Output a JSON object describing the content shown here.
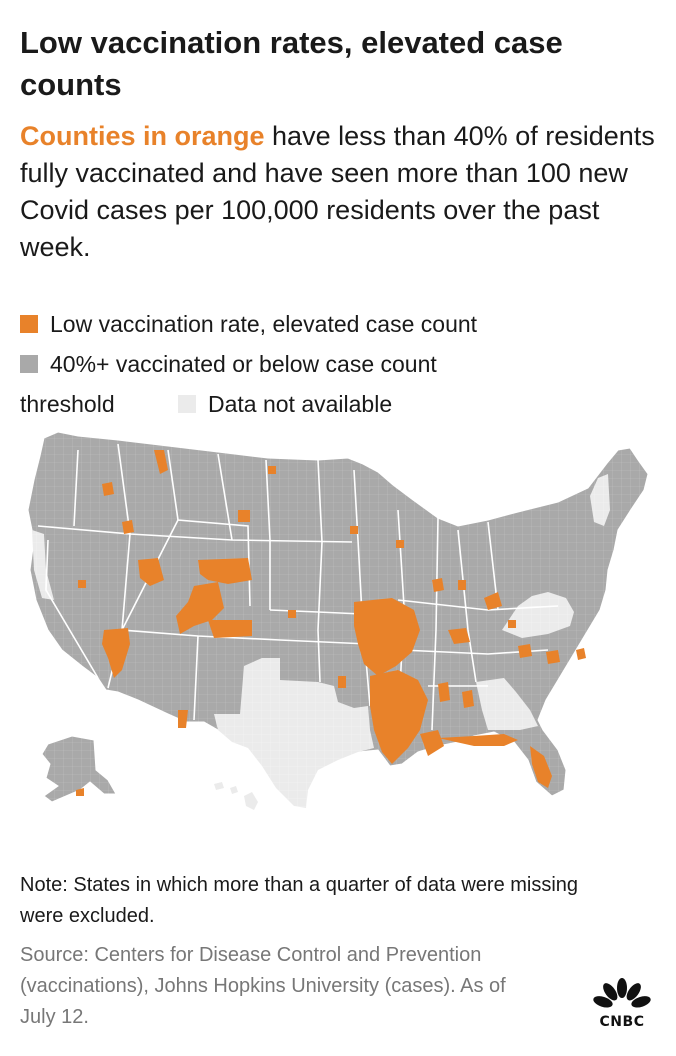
{
  "header": {
    "title": "Low vaccination rates, elevated case counts",
    "subtitle_highlight": "Counties in orange",
    "subtitle_rest": " have less than 40% of residents fully vaccinated and have seen more than 100 new Covid cases per 100,000 residents over the past week."
  },
  "legend": {
    "items": [
      {
        "label": "Low vaccination rate, elevated case count",
        "color": "#e8822a"
      },
      {
        "label_line1": "40%+ vaccinated or below case count",
        "label_line2": "threshold",
        "color": "#a9a9a9"
      },
      {
        "label": "Data not available",
        "color": "#ebebeb"
      }
    ]
  },
  "map": {
    "region": "United States counties",
    "colors": {
      "orange": "#e8822a",
      "gray": "#a9a9a9",
      "na": "#ebebeb",
      "border": "#ffffff"
    }
  },
  "footer": {
    "note": "Note: States in which more than a quarter of data were missing were excluded.",
    "source": "Source: Centers for Disease Control and Prevention (vaccinations), Johns Hopkins University (cases). As of July 12.",
    "logo_text": "CNBC"
  }
}
